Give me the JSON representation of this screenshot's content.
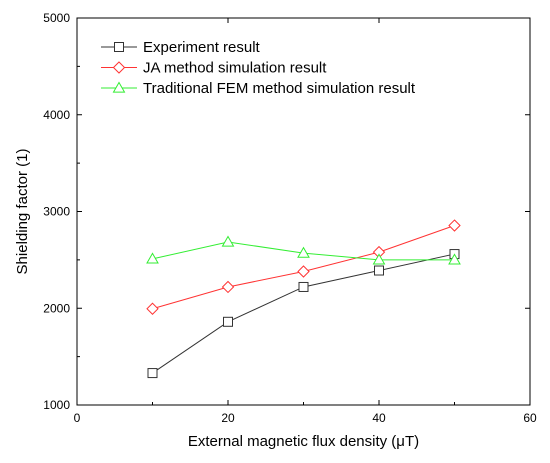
{
  "chart_data": {
    "type": "line",
    "title": "",
    "xlabel": "External magnetic flux density (μT)",
    "ylabel": "Shielding factor (1)",
    "xlim": [
      0,
      60
    ],
    "ylim": [
      1000,
      5000
    ],
    "x_ticks": [
      0,
      20,
      40,
      60
    ],
    "y_ticks": [
      1000,
      2000,
      3000,
      4000,
      5000
    ],
    "x_tick_labels": [
      "0",
      "20",
      "40",
      "60"
    ],
    "y_tick_labels": [
      "1000",
      "2000",
      "3000",
      "4000",
      "5000"
    ],
    "grid": false,
    "legend_position": "top-left",
    "x": [
      10,
      20,
      30,
      40,
      50
    ],
    "series": [
      {
        "name": "Experiment result",
        "values": [
          1330,
          1860,
          2220,
          2390,
          2560
        ],
        "color": "#333333",
        "marker": "square"
      },
      {
        "name": "JA method simulation result",
        "values": [
          1995,
          2220,
          2380,
          2580,
          2855
        ],
        "color": "#ff3333",
        "marker": "diamond"
      },
      {
        "name": "Traditional FEM method simulation result",
        "values": [
          2510,
          2685,
          2570,
          2500,
          2500
        ],
        "color": "#33ee33",
        "marker": "triangle"
      }
    ]
  }
}
